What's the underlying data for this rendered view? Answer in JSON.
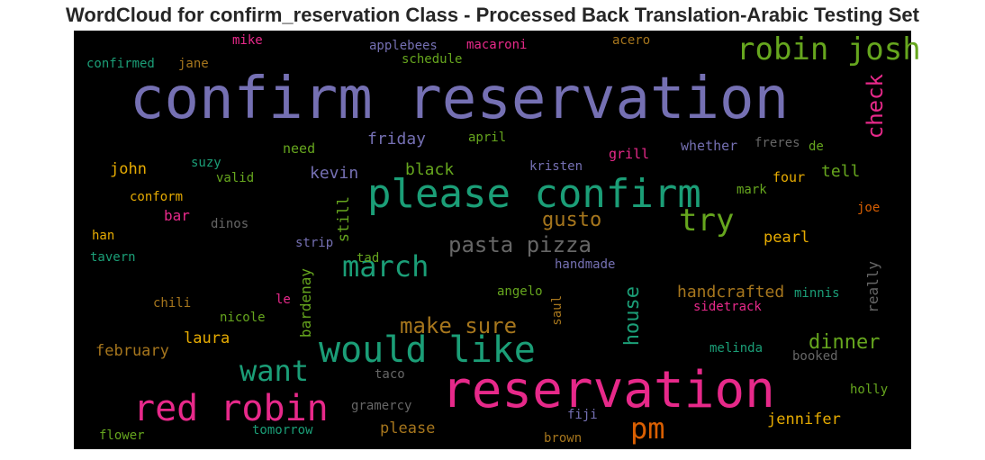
{
  "title": "WordCloud for confirm_reservation Class - Processed Back Translation-Arabic Testing Set",
  "colors": {
    "background": "#000000",
    "purple": "#7570b3",
    "green": "#1b9e77",
    "pink": "#e7298a",
    "olive": "#66a61e",
    "orange": "#d95f02",
    "gold": "#e6ab02",
    "brown": "#a6761d",
    "gray": "#666666"
  },
  "chart_data": {
    "type": "wordcloud",
    "title": "WordCloud for confirm_reservation Class - Processed Back Translation-Arabic Testing Set",
    "words": [
      {
        "text": "confirm reservation",
        "weight": 100,
        "color": "#7570b3"
      },
      {
        "text": "reservation",
        "weight": 80,
        "color": "#e7298a"
      },
      {
        "text": "please confirm",
        "weight": 64,
        "color": "#1b9e77"
      },
      {
        "text": "red robin",
        "weight": 56,
        "color": "#e7298a"
      },
      {
        "text": "would like",
        "weight": 56,
        "color": "#1b9e77"
      },
      {
        "text": "robin josh",
        "weight": 46,
        "color": "#66a61e"
      },
      {
        "text": "try",
        "weight": 44,
        "color": "#66a61e"
      },
      {
        "text": "march",
        "weight": 42,
        "color": "#1b9e77"
      },
      {
        "text": "want",
        "weight": 42,
        "color": "#1b9e77"
      },
      {
        "text": "pm",
        "weight": 42,
        "color": "#d95f02"
      },
      {
        "text": "pasta pizza",
        "weight": 34,
        "color": "#666666"
      },
      {
        "text": "make sure",
        "weight": 32,
        "color": "#a6761d"
      },
      {
        "text": "check",
        "weight": 30,
        "color": "#e7298a"
      },
      {
        "text": "house",
        "weight": 30,
        "color": "#1b9e77"
      },
      {
        "text": "gusto",
        "weight": 30,
        "color": "#a6761d"
      },
      {
        "text": "dinner",
        "weight": 28,
        "color": "#66a61e"
      },
      {
        "text": "handcrafted",
        "weight": 24,
        "color": "#a6761d"
      },
      {
        "text": "friday",
        "weight": 24,
        "color": "#7570b3"
      },
      {
        "text": "kevin",
        "weight": 24,
        "color": "#7570b3"
      },
      {
        "text": "black",
        "weight": 24,
        "color": "#66a61e"
      },
      {
        "text": "tell",
        "weight": 24,
        "color": "#66a61e"
      },
      {
        "text": "john",
        "weight": 22,
        "color": "#e6ab02"
      },
      {
        "text": "still",
        "weight": 22,
        "color": "#66a61e"
      },
      {
        "text": "pearl",
        "weight": 22,
        "color": "#e6ab02"
      },
      {
        "text": "laura",
        "weight": 22,
        "color": "#e6ab02"
      },
      {
        "text": "february",
        "weight": 22,
        "color": "#a6761d"
      },
      {
        "text": "jennifer",
        "weight": 22,
        "color": "#e6ab02"
      },
      {
        "text": "please",
        "weight": 22,
        "color": "#a6761d"
      },
      {
        "text": "bar",
        "weight": 20,
        "color": "#e7298a"
      },
      {
        "text": "bardenay",
        "weight": 20,
        "color": "#66a61e"
      },
      {
        "text": "really",
        "weight": 20,
        "color": "#666666"
      },
      {
        "text": "four",
        "weight": 18,
        "color": "#e6ab02"
      },
      {
        "text": "grill",
        "weight": 18,
        "color": "#e7298a"
      },
      {
        "text": "whether",
        "weight": 18,
        "color": "#7570b3"
      },
      {
        "text": "need",
        "weight": 18,
        "color": "#66a61e"
      },
      {
        "text": "mike",
        "weight": 16,
        "color": "#e7298a"
      },
      {
        "text": "applebees",
        "weight": 16,
        "color": "#7570b3"
      },
      {
        "text": "macaroni",
        "weight": 16,
        "color": "#e7298a"
      },
      {
        "text": "acero",
        "weight": 16,
        "color": "#a6761d"
      },
      {
        "text": "confirmed",
        "weight": 16,
        "color": "#1b9e77"
      },
      {
        "text": "jane",
        "weight": 16,
        "color": "#a6761d"
      },
      {
        "text": "schedule",
        "weight": 16,
        "color": "#66a61e"
      },
      {
        "text": "april",
        "weight": 16,
        "color": "#66a61e"
      },
      {
        "text": "freres",
        "weight": 16,
        "color": "#666666"
      },
      {
        "text": "de",
        "weight": 16,
        "color": "#66a61e"
      },
      {
        "text": "suzy",
        "weight": 16,
        "color": "#1b9e77"
      },
      {
        "text": "valid",
        "weight": 16,
        "color": "#66a61e"
      },
      {
        "text": "kristen",
        "weight": 16,
        "color": "#7570b3"
      },
      {
        "text": "mark",
        "weight": 16,
        "color": "#66a61e"
      },
      {
        "text": "conform",
        "weight": 16,
        "color": "#e6ab02"
      },
      {
        "text": "dinos",
        "weight": 16,
        "color": "#666666"
      },
      {
        "text": "joe",
        "weight": 16,
        "color": "#d95f02"
      },
      {
        "text": "han",
        "weight": 16,
        "color": "#e6ab02"
      },
      {
        "text": "strip",
        "weight": 16,
        "color": "#7570b3"
      },
      {
        "text": "tad",
        "weight": 16,
        "color": "#66a61e"
      },
      {
        "text": "tavern",
        "weight": 16,
        "color": "#1b9e77"
      },
      {
        "text": "handmade",
        "weight": 16,
        "color": "#7570b3"
      },
      {
        "text": "minnis",
        "weight": 16,
        "color": "#1b9e77"
      },
      {
        "text": "chili",
        "weight": 16,
        "color": "#a6761d"
      },
      {
        "text": "le",
        "weight": 16,
        "color": "#e7298a"
      },
      {
        "text": "angelo",
        "weight": 16,
        "color": "#66a61e"
      },
      {
        "text": "saul",
        "weight": 16,
        "color": "#a6761d"
      },
      {
        "text": "sidetrack",
        "weight": 16,
        "color": "#e7298a"
      },
      {
        "text": "nicole",
        "weight": 16,
        "color": "#66a61e"
      },
      {
        "text": "melinda",
        "weight": 16,
        "color": "#1b9e77"
      },
      {
        "text": "booked",
        "weight": 16,
        "color": "#666666"
      },
      {
        "text": "taco",
        "weight": 16,
        "color": "#666666"
      },
      {
        "text": "holly",
        "weight": 16,
        "color": "#66a61e"
      },
      {
        "text": "gramercy",
        "weight": 16,
        "color": "#666666"
      },
      {
        "text": "fiji",
        "weight": 16,
        "color": "#7570b3"
      },
      {
        "text": "flower",
        "weight": 16,
        "color": "#66a61e"
      },
      {
        "text": "tomorrow",
        "weight": 16,
        "color": "#1b9e77"
      },
      {
        "text": "brown",
        "weight": 16,
        "color": "#a6761d"
      }
    ]
  }
}
